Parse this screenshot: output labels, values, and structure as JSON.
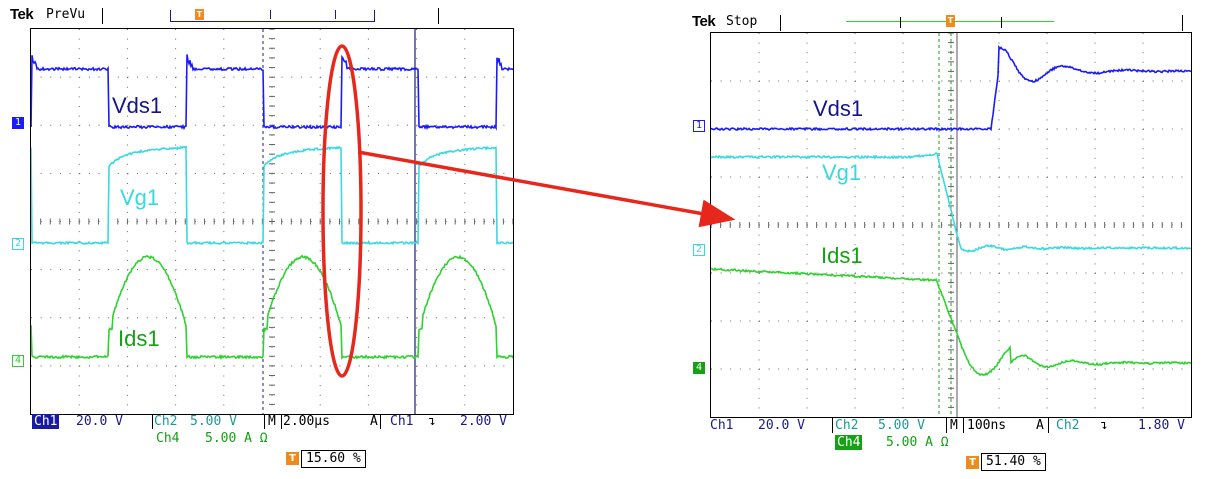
{
  "left": {
    "brand": "Tek",
    "mode": "PreVu",
    "labels": {
      "vds": "Vds1",
      "vg": "Vg1",
      "ids": "Ids1"
    },
    "markers": {
      "ch1": "1",
      "ch2": "2",
      "ch4": "4",
      "trigger": "T"
    },
    "ch1": {
      "name": "Ch1",
      "scale": "20.0 V"
    },
    "ch2": {
      "name": "Ch2",
      "scale": "5.00 V"
    },
    "ch4": {
      "name": "Ch4",
      "scale": "5.00 A Ω"
    },
    "timebase": {
      "prefix": "M",
      "value": "2.00µs"
    },
    "trigger": {
      "prefix": "A",
      "source": "Ch1",
      "slope": "↴",
      "level": "2.00 V"
    },
    "position": "15.60 %"
  },
  "right": {
    "brand": "Tek",
    "mode": "Stop",
    "labels": {
      "vds": "Vds1",
      "vg": "Vg1",
      "ids": "Ids1"
    },
    "markers": {
      "ch1": "1",
      "ch2": "2",
      "ch4": "4",
      "trigger": "T"
    },
    "ch1": {
      "name": "Ch1",
      "scale": "20.0 V"
    },
    "ch2": {
      "name": "Ch2",
      "scale": "5.00 V"
    },
    "ch4": {
      "name": "Ch4",
      "scale": "5.00 A Ω"
    },
    "timebase": {
      "prefix": "M",
      "value": "100ns"
    },
    "trigger": {
      "prefix": "A",
      "source": "Ch2",
      "slope": "↴",
      "level": "1.80 V"
    },
    "position": "51.40 %"
  },
  "colors": {
    "ch1": "#1a1aff",
    "ch2": "#39d9e0",
    "ch4": "#2ed12e",
    "highlight": "#e8271c",
    "trigger": "#f08a1d",
    "ch1_label": "#14148c",
    "ch4_label": "#15a015"
  }
}
